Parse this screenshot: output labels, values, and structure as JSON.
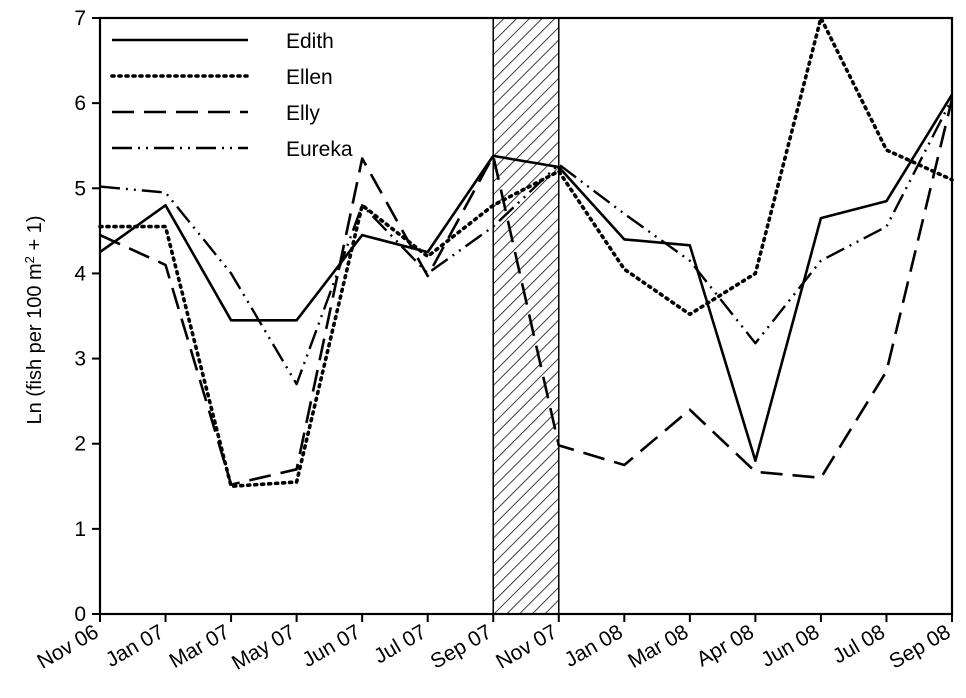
{
  "chart_data": {
    "type": "line",
    "title": "",
    "xlabel": "",
    "ylabel": "Ln (fish per 100 m² + 1)",
    "ylabel_parts": {
      "main": "Ln (fish per 100 m",
      "sup": "2",
      "tail": " + 1)"
    },
    "categories": [
      "Nov 06",
      "Jan 07",
      "Mar 07",
      "May 07",
      "Jun 07",
      "Jul 07",
      "Sep 07",
      "Nov 07",
      "Jan 08",
      "Mar 08",
      "Apr 08",
      "Jun 08",
      "Jul 08",
      "Sep 08"
    ],
    "ylim": [
      0,
      7
    ],
    "yticks": [
      "0",
      "1",
      "2",
      "3",
      "4",
      "5",
      "6",
      "7"
    ],
    "grid": false,
    "legend_position": "top-left",
    "shaded_region": {
      "from": "Sep 07",
      "to": "Nov 07",
      "pattern": "diagonal-hatch"
    },
    "series": [
      {
        "name": "Edith",
        "style": "solid",
        "values": [
          4.25,
          4.8,
          3.45,
          3.45,
          4.45,
          4.25,
          5.38,
          5.25,
          4.4,
          4.33,
          1.8,
          4.65,
          4.85,
          6.1
        ]
      },
      {
        "name": "Ellen",
        "style": "dotted",
        "values": [
          4.55,
          4.55,
          1.5,
          1.55,
          4.8,
          4.2,
          4.8,
          5.2,
          4.05,
          3.52,
          4.0,
          7.0,
          5.45,
          5.1
        ]
      },
      {
        "name": "Elly",
        "style": "dashed",
        "values": [
          4.45,
          4.1,
          1.52,
          1.7,
          5.35,
          3.97,
          5.38,
          1.98,
          1.75,
          2.4,
          1.67,
          1.6,
          2.85,
          6.05
        ]
      },
      {
        "name": "Eureka",
        "style": "dash-dot-dot",
        "values": [
          5.02,
          4.95,
          4.0,
          2.7,
          4.8,
          4.0,
          4.55,
          5.28,
          4.7,
          4.15,
          3.18,
          4.15,
          4.55,
          6.05
        ]
      }
    ]
  }
}
